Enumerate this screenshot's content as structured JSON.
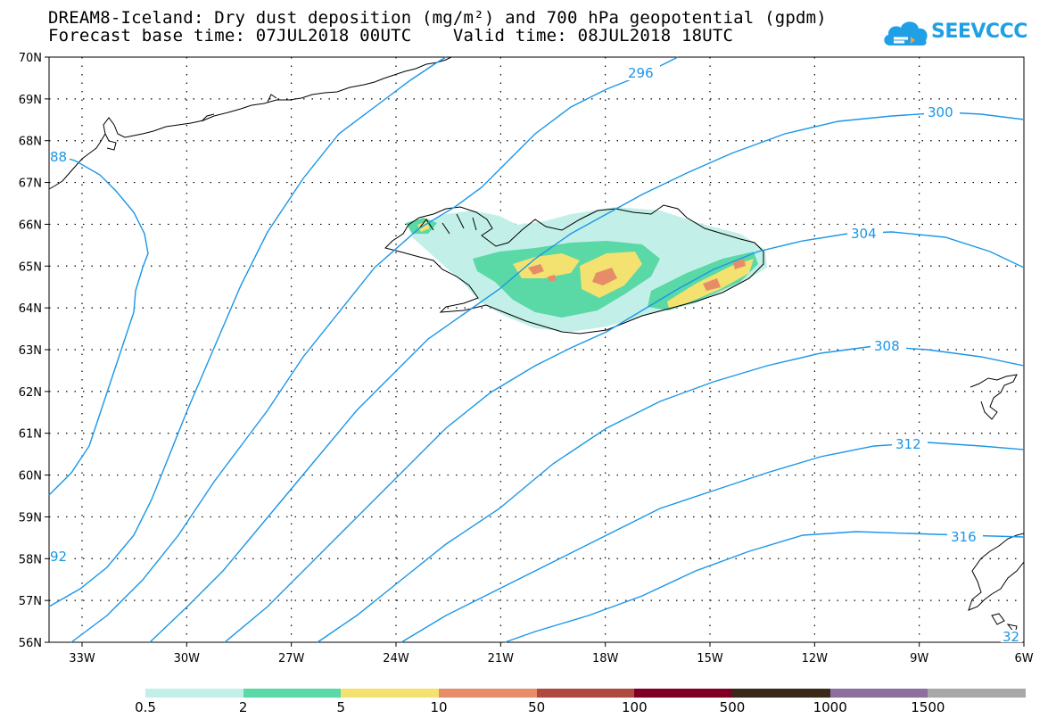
{
  "header": {
    "title": "DREAM8-Iceland: Dry dust deposition (mg/m²) and 700 hPa geopotential (gpdm)",
    "subtitle": "Forecast base time: 07JUL2018 00UTC    Valid time: 08JUL2018 18UTC"
  },
  "logo": {
    "text": "SEEVCCC",
    "icon": "cloud-icon",
    "color": "#1fa0e6"
  },
  "map": {
    "latitudes": [
      "70N",
      "69N",
      "68N",
      "67N",
      "66N",
      "65N",
      "64N",
      "63N",
      "62N",
      "61N",
      "60N",
      "59N",
      "58N",
      "57N",
      "56N"
    ],
    "longitudes": [
      "33W",
      "30W",
      "27W",
      "24W",
      "21W",
      "18W",
      "15W",
      "12W",
      "9W",
      "6W"
    ],
    "contour_color": "#1a96e8",
    "contour_labels": [
      "296",
      "300",
      "304",
      "308",
      "312",
      "316",
      "88",
      "92",
      "32"
    ]
  },
  "legend": {
    "colors": [
      "#c2f0e8",
      "#5ad8a6",
      "#f3e270",
      "#e68d68",
      "#b04a40",
      "#800025",
      "#3a2818",
      "#8c6f9c",
      "#a8a8a8"
    ],
    "labels": [
      "0.5",
      "2",
      "5",
      "10",
      "50",
      "100",
      "500",
      "1000",
      "1500"
    ]
  }
}
